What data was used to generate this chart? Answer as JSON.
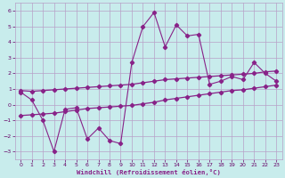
{
  "xlabel": "Windchill (Refroidissement éolien,°C)",
  "ylabel": "",
  "xlim": [
    -0.5,
    23.5
  ],
  "ylim": [
    -3.5,
    6.5
  ],
  "yticks": [
    -3,
    -2,
    -1,
    0,
    1,
    2,
    3,
    4,
    5,
    6
  ],
  "xticks": [
    0,
    1,
    2,
    3,
    4,
    5,
    6,
    7,
    8,
    9,
    10,
    11,
    12,
    13,
    14,
    15,
    16,
    17,
    18,
    19,
    20,
    21,
    22,
    23
  ],
  "bg_color": "#c8ecec",
  "grid_color": "#b8a0c8",
  "line_color": "#882288",
  "line1_x": [
    0,
    1,
    2,
    3,
    4,
    5,
    6,
    7,
    8,
    9,
    10,
    11,
    12,
    13,
    14,
    15,
    16,
    17,
    18,
    19,
    20,
    21,
    22,
    23
  ],
  "line1_y": [
    0.8,
    0.3,
    -1.0,
    -3.0,
    -0.3,
    -0.2,
    -2.2,
    -1.5,
    -2.3,
    -2.5,
    2.7,
    5.0,
    5.9,
    3.7,
    5.1,
    4.4,
    4.5,
    1.3,
    1.5,
    1.8,
    1.6,
    2.7,
    2.0,
    1.5
  ],
  "line2_x": [
    0,
    1,
    2,
    3,
    4,
    5,
    6,
    7,
    8,
    9,
    10,
    11,
    12,
    13,
    14,
    15,
    16,
    17,
    18,
    19,
    20,
    21,
    22,
    23
  ],
  "line2_y": [
    0.9,
    0.85,
    0.9,
    0.95,
    1.0,
    1.05,
    1.1,
    1.15,
    1.2,
    1.25,
    1.3,
    1.4,
    1.5,
    1.6,
    1.65,
    1.7,
    1.75,
    1.8,
    1.85,
    1.9,
    1.95,
    2.0,
    2.1,
    2.15
  ],
  "line3_x": [
    0,
    1,
    2,
    3,
    4,
    5,
    6,
    7,
    8,
    9,
    10,
    11,
    12,
    13,
    14,
    15,
    16,
    17,
    18,
    19,
    20,
    21,
    22,
    23
  ],
  "line3_y": [
    -0.7,
    -0.65,
    -0.6,
    -0.55,
    -0.45,
    -0.35,
    -0.25,
    -0.2,
    -0.15,
    -0.1,
    -0.05,
    0.05,
    0.15,
    0.3,
    0.4,
    0.5,
    0.6,
    0.7,
    0.8,
    0.9,
    0.95,
    1.05,
    1.15,
    1.25
  ]
}
